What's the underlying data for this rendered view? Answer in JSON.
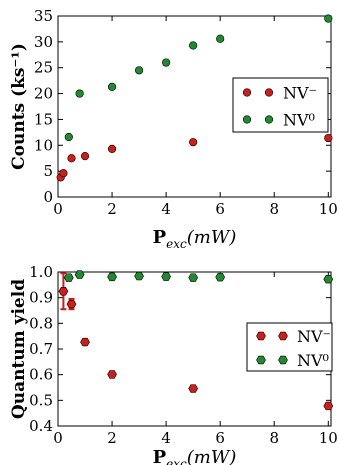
{
  "chart_data": [
    {
      "type": "scatter",
      "ylabel": "Counts (ks⁻¹)",
      "xlabel_main": "P",
      "xlabel_sub": "exc",
      "xlabel_rest": "(mW)",
      "xlim": [
        0,
        10.1
      ],
      "ylim": [
        0,
        35
      ],
      "xticks": [
        0,
        2,
        4,
        6,
        8,
        10
      ],
      "yticks": [
        0,
        5,
        10,
        15,
        20,
        25,
        30,
        35
      ],
      "legend_position": "right",
      "series": [
        {
          "name": "NV⁻",
          "color": "#cc1f1a",
          "marker": "circle",
          "x": [
            0.1,
            0.2,
            0.5,
            1,
            2,
            5,
            10
          ],
          "y": [
            3.8,
            4.6,
            7.5,
            7.9,
            9.3,
            10.6,
            11.4
          ]
        },
        {
          "name": "NV⁰",
          "color": "#1f8a2e",
          "marker": "circle",
          "x": [
            0.4,
            0.8,
            2,
            3,
            4,
            5,
            6,
            10
          ],
          "y": [
            11.6,
            20.0,
            21.3,
            24.5,
            26.0,
            29.3,
            30.6,
            34.5
          ]
        }
      ]
    },
    {
      "type": "scatter",
      "ylabel": "Quantum yield",
      "xlabel_main": "P",
      "xlabel_sub": "exc",
      "xlabel_rest": "(mW)",
      "xlim": [
        0,
        10.1
      ],
      "ylim": [
        0.4,
        1.0
      ],
      "xticks": [
        0,
        2,
        4,
        6,
        8,
        10
      ],
      "yticks": [
        "0.4",
        "0.5",
        "0.6",
        "0.7",
        "0.8",
        "0.9",
        "1.0"
      ],
      "legend_position": "right",
      "series": [
        {
          "name": "NV⁻",
          "color": "#cc1f1a",
          "marker": "hexagon",
          "x": [
            0.2,
            0.5,
            1,
            2,
            5,
            10
          ],
          "y": [
            0.925,
            0.875,
            0.727,
            0.601,
            0.546,
            0.478
          ],
          "yerr": [
            0.07,
            0.02,
            0,
            0,
            0,
            0
          ]
        },
        {
          "name": "NV⁰",
          "color": "#1f8a2e",
          "marker": "hexagon",
          "x": [
            0.4,
            0.8,
            2,
            3,
            4,
            5,
            6,
            10
          ],
          "y": [
            0.978,
            0.99,
            0.981,
            0.984,
            0.982,
            0.978,
            0.98,
            0.972
          ]
        }
      ]
    }
  ]
}
